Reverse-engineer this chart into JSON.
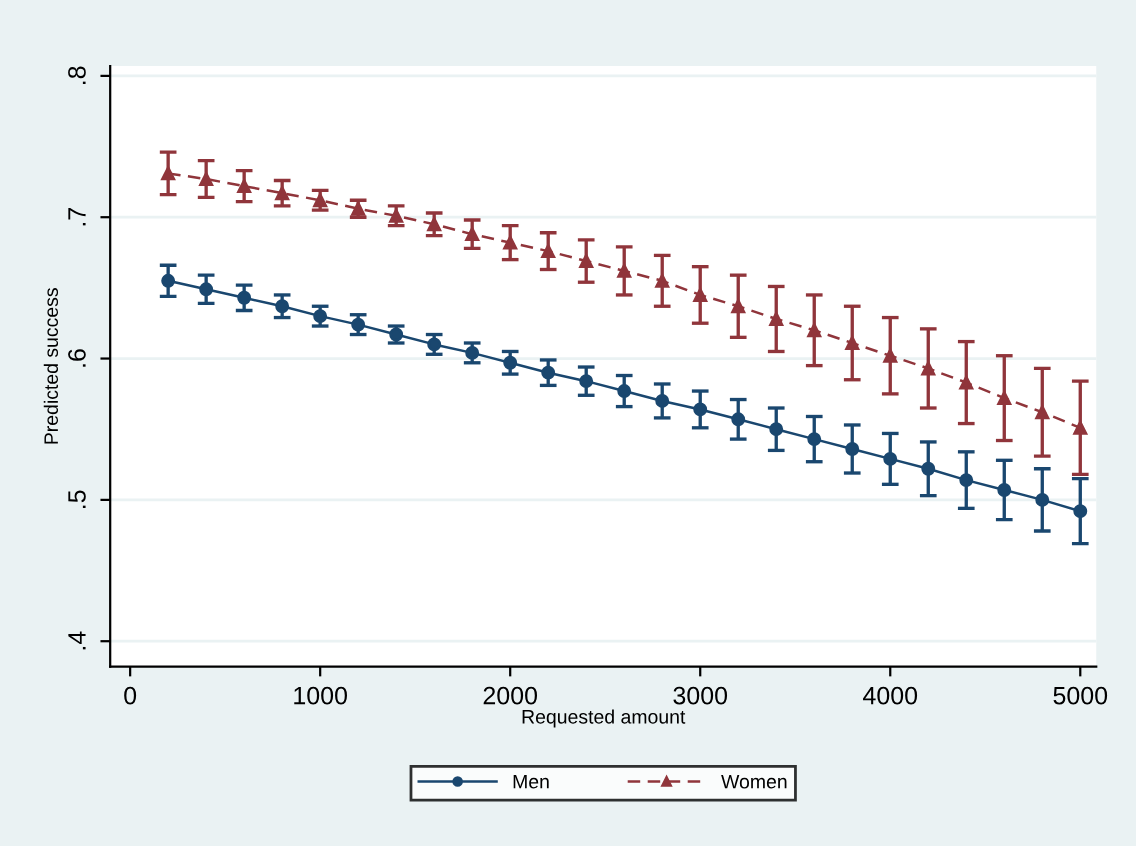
{
  "chart_data": {
    "type": "line",
    "xlabel": "Requested amount",
    "ylabel": "Predicted success",
    "x": [
      200,
      400,
      600,
      800,
      1000,
      1200,
      1400,
      1600,
      1800,
      2000,
      2200,
      2400,
      2600,
      2800,
      3000,
      3200,
      3400,
      3600,
      3800,
      4000,
      4200,
      4400,
      4600,
      4800,
      5000
    ],
    "series": [
      {
        "name": "Men",
        "color": "#1a476f",
        "marker": "circle",
        "line_style": "solid",
        "values": [
          0.655,
          0.649,
          0.643,
          0.637,
          0.63,
          0.624,
          0.617,
          0.61,
          0.604,
          0.597,
          0.59,
          0.584,
          0.577,
          0.57,
          0.564,
          0.557,
          0.55,
          0.543,
          0.536,
          0.529,
          0.522,
          0.514,
          0.507,
          0.5,
          0.492
        ],
        "errors": [
          0.011,
          0.01,
          0.009,
          0.008,
          0.007,
          0.007,
          0.006,
          0.007,
          0.007,
          0.008,
          0.009,
          0.01,
          0.011,
          0.012,
          0.013,
          0.014,
          0.015,
          0.016,
          0.017,
          0.018,
          0.019,
          0.02,
          0.021,
          0.022,
          0.023
        ]
      },
      {
        "name": "Women",
        "color": "#90353b",
        "marker": "triangle",
        "line_style": "dashed",
        "values": [
          0.731,
          0.727,
          0.722,
          0.717,
          0.712,
          0.706,
          0.701,
          0.695,
          0.688,
          0.682,
          0.676,
          0.669,
          0.662,
          0.655,
          0.645,
          0.637,
          0.628,
          0.62,
          0.611,
          0.602,
          0.593,
          0.583,
          0.572,
          0.562,
          0.551
        ],
        "errors": [
          0.015,
          0.013,
          0.011,
          0.009,
          0.007,
          0.006,
          0.007,
          0.008,
          0.01,
          0.012,
          0.013,
          0.015,
          0.017,
          0.018,
          0.02,
          0.022,
          0.023,
          0.025,
          0.026,
          0.027,
          0.028,
          0.029,
          0.03,
          0.031,
          0.033
        ]
      }
    ],
    "xlim": [
      -105,
      5084
    ],
    "xticks": [
      0,
      1000,
      2000,
      3000,
      4000,
      5000
    ],
    "ylim": [
      0.382,
      0.807
    ],
    "yticks": [
      {
        "value": 0.4,
        "label": ".4"
      },
      {
        "value": 0.5,
        "label": ".5"
      },
      {
        "value": 0.6,
        "label": ".6"
      },
      {
        "value": 0.7,
        "label": ".7"
      },
      {
        "value": 0.8,
        "label": ".8"
      }
    ],
    "grid": "y",
    "legend": "bottom"
  }
}
